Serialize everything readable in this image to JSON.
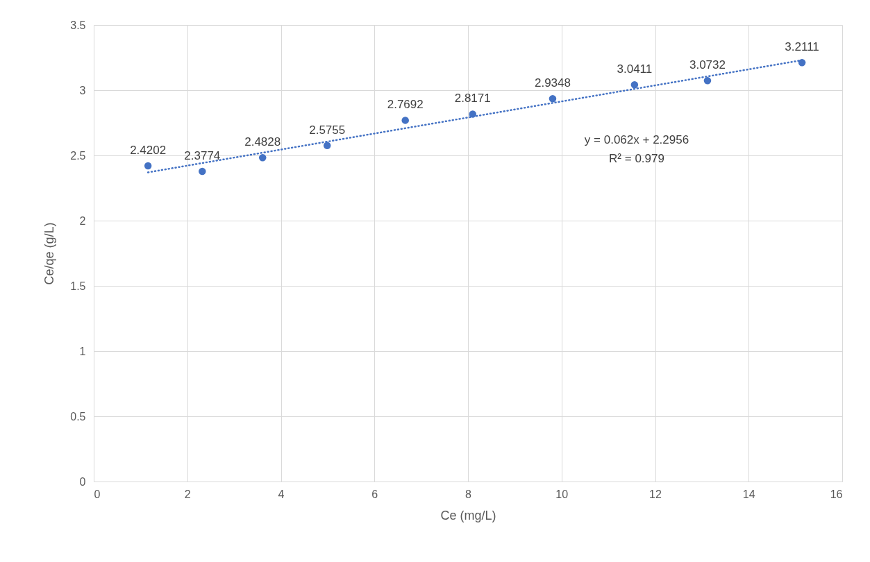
{
  "chart_data": {
    "type": "scatter",
    "xlabel": "Ce (mg/L)",
    "ylabel": "Ce/qe (g/L)",
    "xlim": [
      0,
      16
    ],
    "xticks": [
      0,
      2,
      4,
      6,
      8,
      10,
      12,
      14,
      16
    ],
    "ylim": [
      0,
      3.5
    ],
    "yticks": [
      0,
      0.5,
      1,
      1.5,
      2,
      2.5,
      3,
      3.5
    ],
    "grid": true,
    "marker": "circle",
    "x": [
      1.16,
      2.32,
      3.61,
      4.99,
      6.66,
      8.1,
      9.81,
      11.56,
      13.12,
      15.14
    ],
    "series": [
      {
        "color": "#4472c4",
        "values": [
          2.4202,
          2.3774,
          2.4828,
          2.5755,
          2.7692,
          2.8171,
          2.9348,
          3.0411,
          3.0732,
          3.2111
        ],
        "value_labels": [
          "2.4202",
          "2.3774",
          "2.4828",
          "2.5755",
          "2.7692",
          "2.8171",
          "2.9348",
          "3.0411",
          "3.0732",
          "3.2111"
        ]
      },
      {
        "type": "line",
        "color": "#4472c4",
        "line_style": "dotted",
        "marker": "none",
        "x": [
          1.16,
          15.14
        ],
        "values": [
          2.37,
          3.23
        ]
      }
    ],
    "annotations": [
      "y = 0.062x + 2.2956",
      "R² = 0.979"
    ]
  }
}
